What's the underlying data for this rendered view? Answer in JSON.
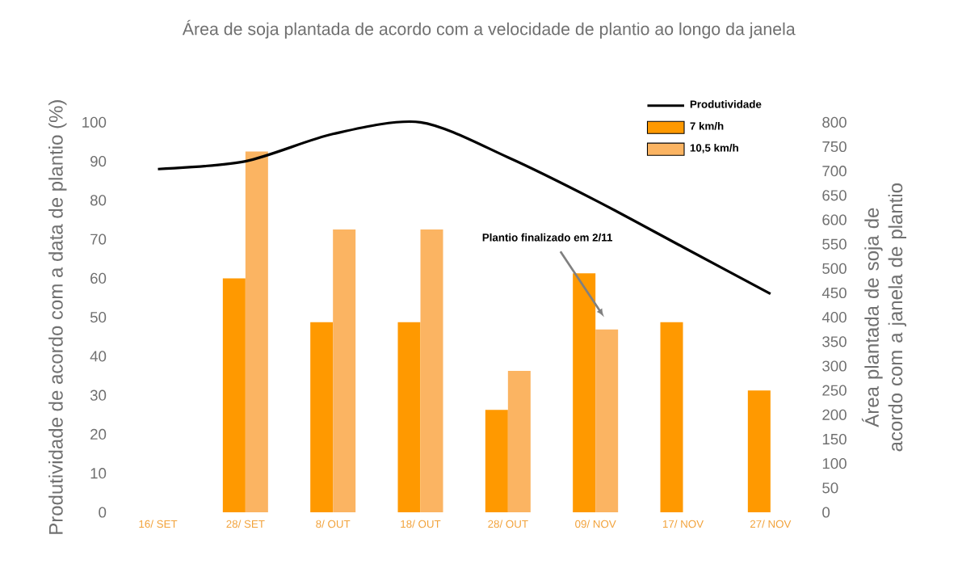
{
  "chart_data": {
    "type": "bar",
    "title": "Área de soja plantada de acordo com a velocidade de plantio ao longo da janela",
    "ylabel": "Produtividade de acordo com a data de plantio (%)",
    "y2label": "Área plantada de soja de acordo com a janela de plantio",
    "categories": [
      "16/ SET",
      "28/ SET",
      "8/ OUT",
      "18/ OUT",
      "28/ OUT",
      "09/ NOV",
      "17/ NOV",
      "27/ NOV"
    ],
    "series": [
      {
        "name": "Produtividade",
        "type": "line",
        "color": "#000000",
        "values": [
          88,
          90,
          97,
          100,
          91,
          80,
          68,
          56
        ]
      },
      {
        "name": "7 km/h",
        "axis": "y2",
        "color": "#ff9900",
        "values": [
          null,
          480,
          390,
          390,
          210,
          490,
          390,
          250
        ]
      },
      {
        "name": "10,5 km/h",
        "axis": "y2",
        "color": "#fbb462",
        "values": [
          null,
          740,
          580,
          580,
          290,
          375,
          null,
          null
        ]
      }
    ],
    "ylim": [
      0,
      100
    ],
    "yticks": [
      0,
      10,
      20,
      30,
      40,
      50,
      60,
      70,
      80,
      90,
      100
    ],
    "y2lim": [
      0,
      800
    ],
    "y2ticks": [
      0,
      50,
      100,
      150,
      200,
      250,
      300,
      350,
      400,
      450,
      500,
      550,
      600,
      650,
      700,
      750,
      800
    ],
    "annotations": [
      "Plantio finalizado em 2/11"
    ],
    "legend": "top right",
    "marker": "none",
    "line_style": "solid"
  }
}
